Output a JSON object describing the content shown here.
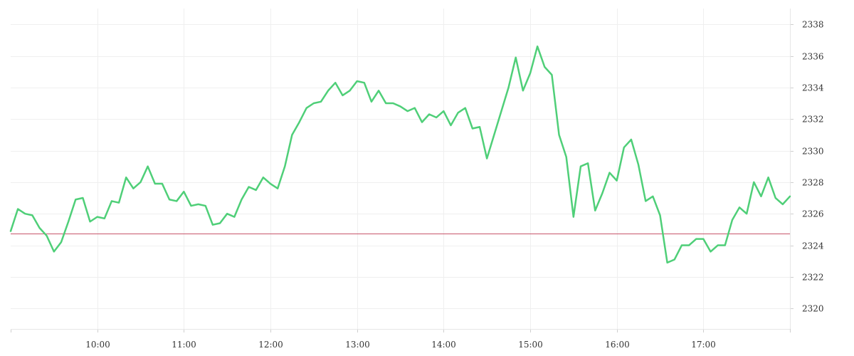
{
  "chart_data": {
    "type": "line",
    "title": "",
    "xlabel": "",
    "ylabel": "",
    "x_ticks": [
      "10:00",
      "11:00",
      "12:00",
      "13:00",
      "14:00",
      "15:00",
      "16:00",
      "17:00"
    ],
    "y_ticks": [
      2320,
      2322,
      2324,
      2326,
      2328,
      2330,
      2332,
      2334,
      2336,
      2338
    ],
    "xlim": [
      "09:00",
      "18:00"
    ],
    "ylim": [
      2318.7,
      2339.0
    ],
    "grid": true,
    "y_axis_side": "right",
    "series": [
      {
        "color": "#4fcf78",
        "points": [
          [
            "09:00",
            2324.9
          ],
          [
            "09:05",
            2326.3
          ],
          [
            "09:10",
            2326.0
          ],
          [
            "09:15",
            2325.9
          ],
          [
            "09:20",
            2325.1
          ],
          [
            "09:25",
            2324.6
          ],
          [
            "09:30",
            2323.6
          ],
          [
            "09:35",
            2324.2
          ],
          [
            "09:40",
            2325.5
          ],
          [
            "09:45",
            2326.9
          ],
          [
            "09:50",
            2327.0
          ],
          [
            "09:55",
            2325.5
          ],
          [
            "10:00",
            2325.8
          ],
          [
            "10:05",
            2325.7
          ],
          [
            "10:10",
            2326.8
          ],
          [
            "10:15",
            2326.7
          ],
          [
            "10:20",
            2328.3
          ],
          [
            "10:25",
            2327.6
          ],
          [
            "10:30",
            2328.0
          ],
          [
            "10:35",
            2329.0
          ],
          [
            "10:40",
            2327.9
          ],
          [
            "10:45",
            2327.9
          ],
          [
            "10:50",
            2326.9
          ],
          [
            "10:55",
            2326.8
          ],
          [
            "11:00",
            2327.4
          ],
          [
            "11:05",
            2326.5
          ],
          [
            "11:10",
            2326.6
          ],
          [
            "11:15",
            2326.5
          ],
          [
            "11:20",
            2325.3
          ],
          [
            "11:25",
            2325.4
          ],
          [
            "11:30",
            2326.0
          ],
          [
            "11:35",
            2325.8
          ],
          [
            "11:40",
            2326.9
          ],
          [
            "11:45",
            2327.7
          ],
          [
            "11:50",
            2327.5
          ],
          [
            "11:55",
            2328.3
          ],
          [
            "12:00",
            2327.9
          ],
          [
            "12:05",
            2327.6
          ],
          [
            "12:10",
            2329.0
          ],
          [
            "12:15",
            2331.0
          ],
          [
            "12:20",
            2331.8
          ],
          [
            "12:25",
            2332.7
          ],
          [
            "12:30",
            2333.0
          ],
          [
            "12:35",
            2333.1
          ],
          [
            "12:40",
            2333.8
          ],
          [
            "12:45",
            2334.3
          ],
          [
            "12:50",
            2333.5
          ],
          [
            "12:55",
            2333.8
          ],
          [
            "13:00",
            2334.4
          ],
          [
            "13:05",
            2334.3
          ],
          [
            "13:10",
            2333.1
          ],
          [
            "13:15",
            2333.8
          ],
          [
            "13:20",
            2333.0
          ],
          [
            "13:25",
            2333.0
          ],
          [
            "13:30",
            2332.8
          ],
          [
            "13:35",
            2332.5
          ],
          [
            "13:40",
            2332.7
          ],
          [
            "13:45",
            2331.8
          ],
          [
            "13:50",
            2332.3
          ],
          [
            "13:55",
            2332.1
          ],
          [
            "14:00",
            2332.5
          ],
          [
            "14:05",
            2331.6
          ],
          [
            "14:10",
            2332.4
          ],
          [
            "14:15",
            2332.7
          ],
          [
            "14:20",
            2331.4
          ],
          [
            "14:25",
            2331.5
          ],
          [
            "14:30",
            2329.5
          ],
          [
            "14:35",
            2331.0
          ],
          [
            "14:40",
            2332.5
          ],
          [
            "14:45",
            2334.0
          ],
          [
            "14:50",
            2335.9
          ],
          [
            "14:55",
            2333.8
          ],
          [
            "15:00",
            2334.9
          ],
          [
            "15:05",
            2336.6
          ],
          [
            "15:10",
            2335.3
          ],
          [
            "15:15",
            2334.8
          ],
          [
            "15:20",
            2331.0
          ],
          [
            "15:25",
            2329.6
          ],
          [
            "15:30",
            2325.8
          ],
          [
            "15:35",
            2329.0
          ],
          [
            "15:40",
            2329.2
          ],
          [
            "15:45",
            2326.2
          ],
          [
            "15:50",
            2327.3
          ],
          [
            "15:55",
            2328.6
          ],
          [
            "16:00",
            2328.1
          ],
          [
            "16:05",
            2330.2
          ],
          [
            "16:10",
            2330.7
          ],
          [
            "16:15",
            2329.1
          ],
          [
            "16:20",
            2326.8
          ],
          [
            "16:25",
            2327.1
          ],
          [
            "16:30",
            2325.9
          ],
          [
            "16:35",
            2322.9
          ],
          [
            "16:40",
            2323.1
          ],
          [
            "16:45",
            2324.0
          ],
          [
            "16:50",
            2324.0
          ],
          [
            "16:55",
            2324.4
          ],
          [
            "17:00",
            2324.4
          ],
          [
            "17:05",
            2323.6
          ],
          [
            "17:10",
            2324.0
          ],
          [
            "17:15",
            2324.0
          ],
          [
            "17:20",
            2325.6
          ],
          [
            "17:25",
            2326.4
          ],
          [
            "17:30",
            2326.0
          ],
          [
            "17:35",
            2328.0
          ],
          [
            "17:40",
            2327.1
          ],
          [
            "17:45",
            2328.3
          ],
          [
            "17:50",
            2327.0
          ],
          [
            "17:55",
            2326.6
          ],
          [
            "18:00",
            2327.1
          ]
        ]
      }
    ],
    "reference_line": {
      "y": 2324.75,
      "color": "#c8566b"
    }
  }
}
